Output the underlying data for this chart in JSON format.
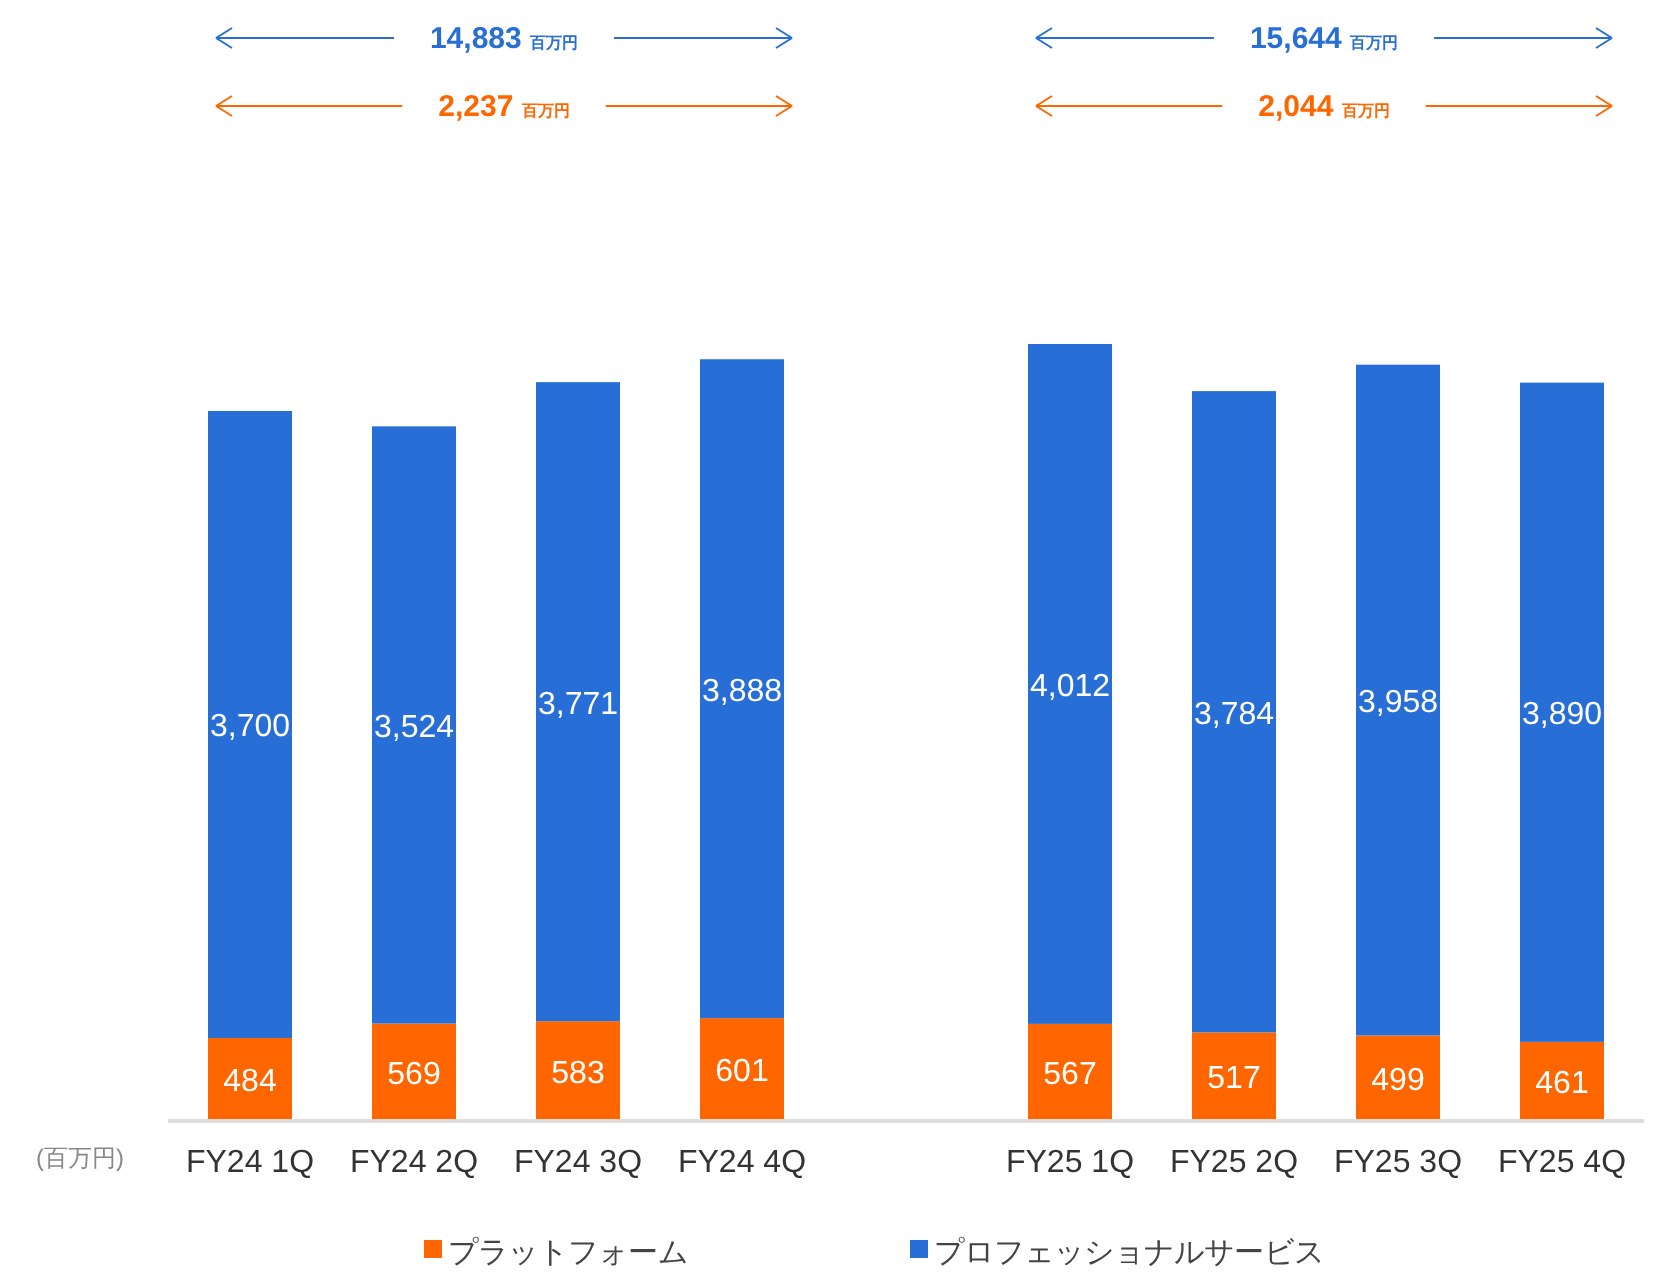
{
  "chart_data": {
    "type": "bar",
    "stacked": true,
    "legend": "bottom",
    "ylabel": "(百万円)",
    "categories": [
      "FY24 1Q",
      "FY24 2Q",
      "FY24 3Q",
      "FY24 4Q",
      null,
      "FY25 1Q",
      "FY25 2Q",
      "FY25 3Q",
      "FY25 4Q"
    ],
    "series": [
      {
        "name": "プラットフォーム",
        "color": "#ff6600",
        "values": [
          484,
          569,
          583,
          601,
          null,
          567,
          517,
          499,
          461
        ],
        "value_labels": [
          "484",
          "569",
          "583",
          "601",
          null,
          "567",
          "517",
          "499",
          "461"
        ]
      },
      {
        "name": "プロフェッショナルサービス",
        "color": "#276ed6",
        "values": [
          3700,
          3524,
          3771,
          3888,
          null,
          4012,
          3784,
          3958,
          3890
        ],
        "value_labels": [
          "3,700",
          "3,524",
          "3,771",
          "3,888",
          null,
          "4,012",
          "3,784",
          "3,958",
          "3,890"
        ]
      }
    ],
    "annotations": [
      "14,883 百万円",
      "2,237 百万円",
      "15,644 百万円",
      "2,044 百万円"
    ]
  }
}
